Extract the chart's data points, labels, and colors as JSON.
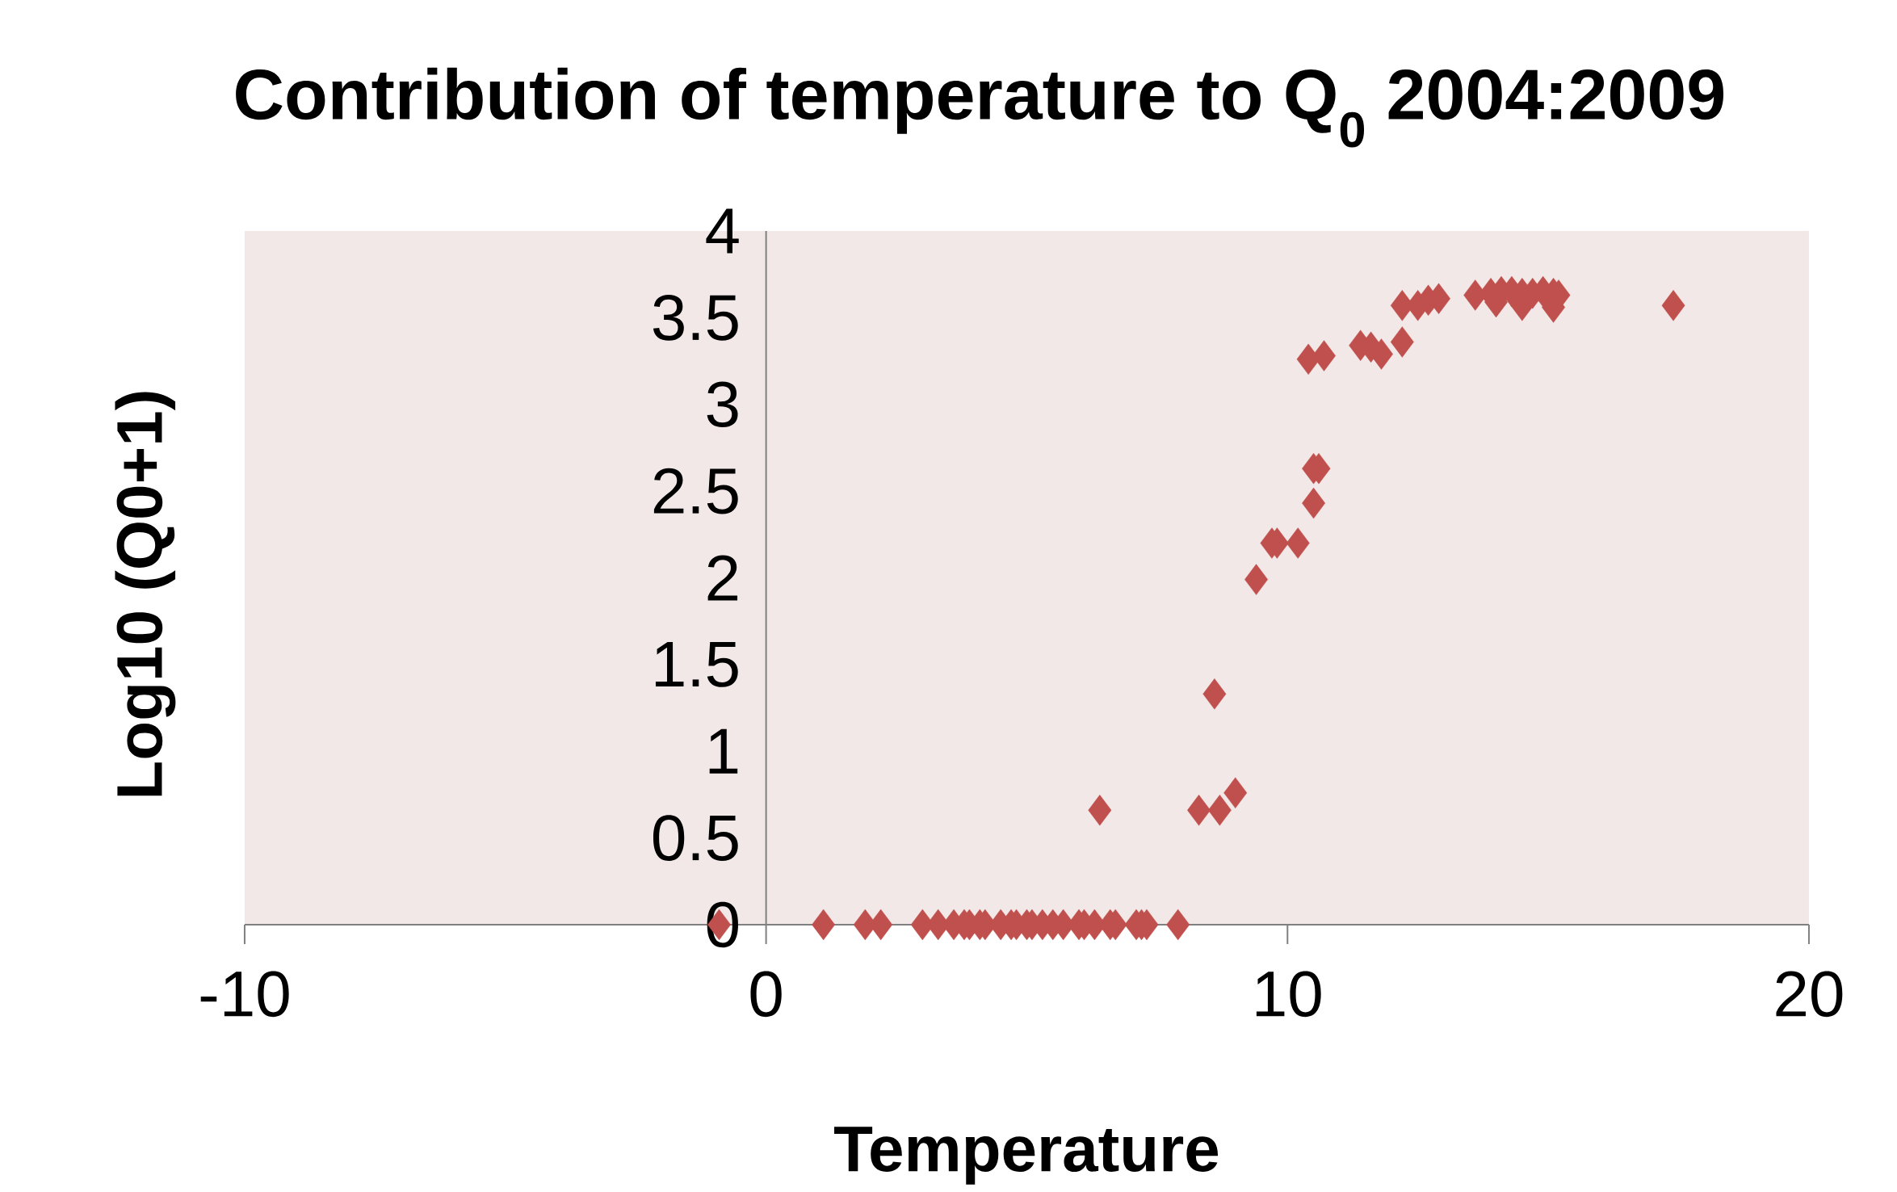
{
  "chart_data": {
    "type": "scatter",
    "title": "Contribution of temperature to Q$_{0}$ 2004:2009",
    "xlabel": "Temperature",
    "ylabel": "Log10 (Q0+1)",
    "x": [
      -0.9,
      1.1,
      1.9,
      2.2,
      3.0,
      3.3,
      3.6,
      3.8,
      3.9,
      4.1,
      4.2,
      4.5,
      4.7,
      4.8,
      5.0,
      5.1,
      5.3,
      5.5,
      5.7,
      6.0,
      6.1,
      6.3,
      6.6,
      6.7,
      7.1,
      7.2,
      7.3,
      7.9,
      6.4,
      8.3,
      8.7,
      9.0,
      8.6,
      9.4,
      9.7,
      9.8,
      10.2,
      10.5,
      10.5,
      10.6,
      10.4,
      10.7,
      11.4,
      11.6,
      11.8,
      12.2,
      12.2,
      12.5,
      12.7,
      12.9,
      13.6,
      13.9,
      14.0,
      14.1,
      14.3,
      14.5,
      14.5,
      14.7,
      14.9,
      15.1,
      15.2,
      15.1,
      17.4
    ],
    "values": [
      0,
      0,
      0,
      0,
      0,
      0,
      0,
      0,
      0,
      0,
      0,
      0,
      0,
      0,
      0,
      0,
      0,
      0,
      0,
      0,
      0,
      0,
      0,
      0,
      0,
      0,
      0,
      0,
      0.66,
      0.66,
      0.66,
      0.76,
      1.33,
      1.99,
      2.2,
      2.2,
      2.2,
      2.43,
      2.63,
      2.63,
      3.26,
      3.28,
      3.34,
      3.33,
      3.29,
      3.36,
      3.57,
      3.57,
      3.6,
      3.61,
      3.63,
      3.64,
      3.59,
      3.65,
      3.65,
      3.64,
      3.57,
      3.64,
      3.65,
      3.64,
      3.63,
      3.56,
      3.57
    ],
    "color": "#c0504d",
    "marker": "diamond",
    "xlim": [
      -10,
      20
    ],
    "ylim": [
      0,
      4
    ],
    "xticks": [
      -10,
      0,
      10,
      20
    ],
    "yticks": [
      0,
      0.5,
      1,
      1.5,
      2,
      2.5,
      3,
      3.5,
      4
    ]
  }
}
